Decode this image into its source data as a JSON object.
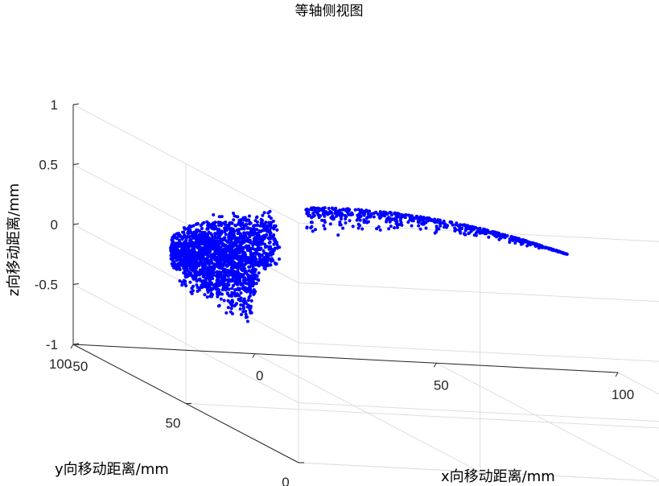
{
  "chart_data": {
    "type": "scatter",
    "title": "等轴侧视图",
    "xlabel": "x向移动距离/mm",
    "ylabel": "y向移动距离/mm",
    "zlabel": "z向移动距离/mm",
    "xlim": [
      -50,
      100
    ],
    "ylim": [
      0,
      100
    ],
    "zlim": [
      -1,
      1
    ],
    "xticks": [
      "-50",
      "0",
      "50",
      "100"
    ],
    "yticks": [
      "0",
      "50",
      "100"
    ],
    "zticks": [
      "-1",
      "-0.5",
      "0",
      "0.5",
      "1"
    ],
    "grid": true,
    "view": "isometric 3D",
    "marker_color": "#0000ff",
    "series": [
      {
        "x": [
          0,
          100
        ],
        "y": [
          0,
          100
        ],
        "z": [
          -0.7,
          0
        ]
      }
    ]
  }
}
